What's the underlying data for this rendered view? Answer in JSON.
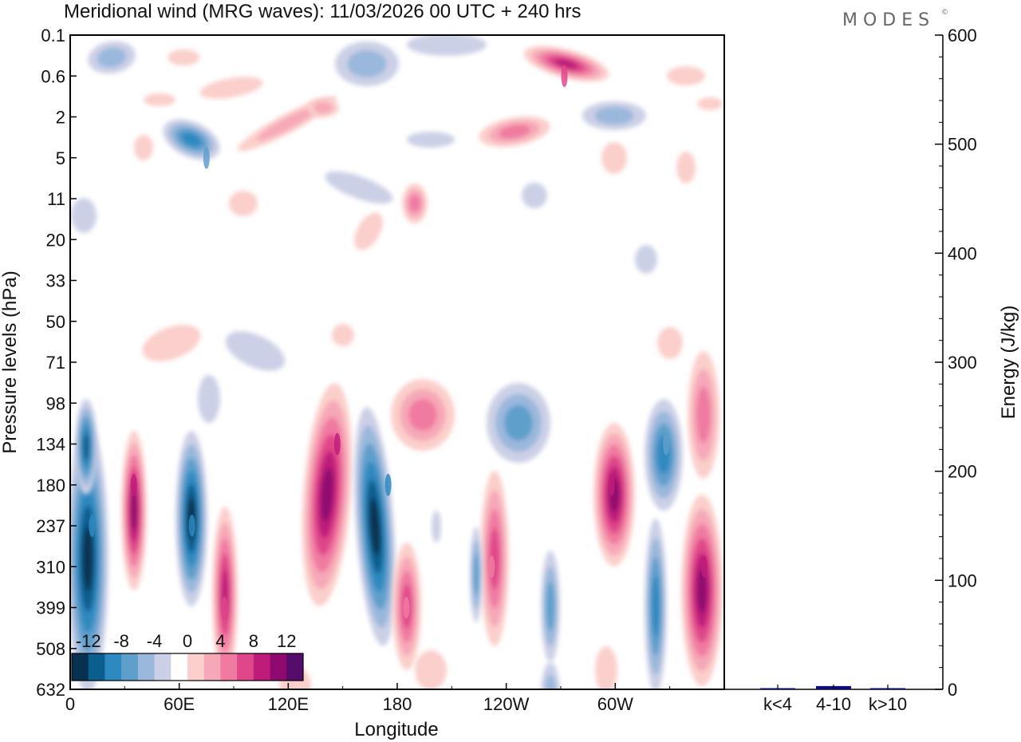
{
  "title": "Meridional wind (MRG waves):  11/03/2026  00 UTC  + 240 hrs",
  "logo": "MODES",
  "logo_mark": "©",
  "chart_data": [
    {
      "type": "heatmap",
      "title": "Meridional wind (MRG waves)",
      "xlabel": "Longitude",
      "ylabel": "Pressure levels (hPa)",
      "x_ticks": [
        "0",
        "60E",
        "120E",
        "180",
        "120W",
        "60W"
      ],
      "x_tick_values": [
        0,
        60,
        120,
        180,
        240,
        300
      ],
      "xlim": [
        0,
        360
      ],
      "y_ticks": [
        "0.1",
        "0.6",
        "2",
        "5",
        "11",
        "20",
        "33",
        "50",
        "71",
        "98",
        "134",
        "180",
        "237",
        "310",
        "399",
        "508",
        "632"
      ],
      "colorbar": {
        "labels": [
          "-12",
          "-8",
          "-4",
          "0",
          "4",
          "8",
          "12"
        ],
        "label_positions": [
          -12,
          -8,
          -4,
          0,
          4,
          8,
          12
        ],
        "bins": [
          -14,
          -12,
          -10,
          -8,
          -6,
          -4,
          -2,
          2,
          4,
          6,
          8,
          10,
          12,
          14
        ],
        "colors": [
          "#08304f",
          "#0b5f8e",
          "#2d89bf",
          "#5e9fcc",
          "#9ab8dc",
          "#ccd0e6",
          "#ffffff",
          "#fbcfcb",
          "#f7a8b8",
          "#f07aa0",
          "#e0478a",
          "#bf1c7a",
          "#8f0a6e",
          "#560c6b"
        ]
      },
      "features": [
        {
          "lon": 12,
          "level": "237",
          "value": -10
        },
        {
          "lon": 35,
          "level": "180",
          "value": 11
        },
        {
          "lon": 67,
          "level": "237",
          "value": -10
        },
        {
          "lon": 85,
          "level": "399",
          "value": 8
        },
        {
          "lon": 147,
          "level": "134",
          "value": 10
        },
        {
          "lon": 175,
          "level": "180",
          "value": -10
        },
        {
          "lon": 185,
          "level": "399",
          "value": 7
        },
        {
          "lon": 232,
          "level": "310",
          "value": 7
        },
        {
          "lon": 298,
          "level": "180",
          "value": 10
        },
        {
          "lon": 328,
          "level": "134",
          "value": -8
        },
        {
          "lon": 349,
          "level": "310",
          "value": 10
        },
        {
          "lon": 272,
          "level": "0.6",
          "value": 9
        },
        {
          "lon": 75,
          "level": "5",
          "value": -8
        }
      ]
    },
    {
      "type": "bar",
      "categories": [
        "k<4",
        "4-10",
        "k>10"
      ],
      "values": [
        0,
        3,
        0
      ],
      "ylabel": "Energy (J/kg)",
      "ylim": [
        0,
        600
      ],
      "y_ticks": [
        "0",
        "100",
        "200",
        "300",
        "400",
        "500",
        "600"
      ],
      "y_tick_values": [
        0,
        100,
        200,
        300,
        400,
        500,
        600
      ],
      "color": "#0b0b7a"
    }
  ]
}
